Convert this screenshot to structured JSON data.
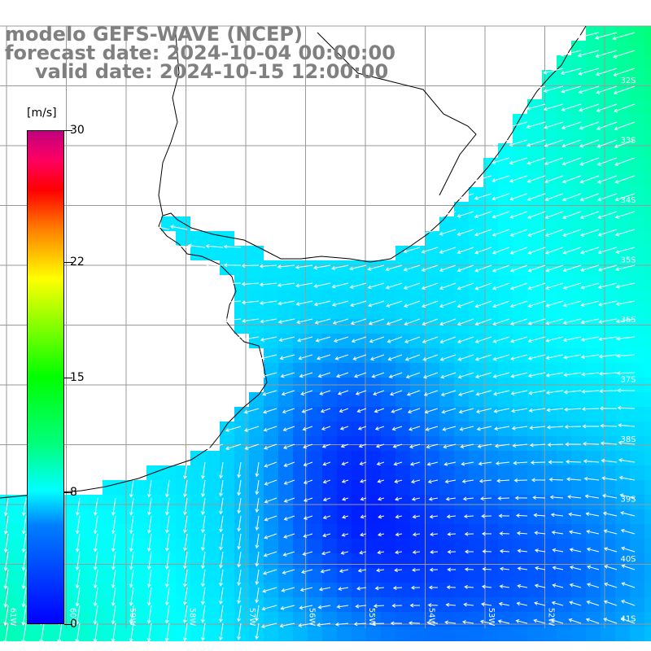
{
  "title": {
    "model": "modelo GEFS-WAVE (NCEP)",
    "forecast": "forecast date: 2024-10-04 00:00:00",
    "valid": "valid date: 2024-10-15 12:00:00"
  },
  "colorbar": {
    "unit": "[m/s]",
    "ticks": [
      "30",
      "22",
      "15",
      "8",
      "0"
    ],
    "tick_values": [
      30,
      22,
      15,
      8,
      0
    ],
    "min": 0,
    "max": 30
  },
  "map": {
    "variable": "wind speed and direction",
    "lat_labels": [
      "32S",
      "33S",
      "34S",
      "35S",
      "36S",
      "37S",
      "38S",
      "39S",
      "40S",
      "41S"
    ],
    "lon_labels": [
      "61W",
      "60W",
      "59W",
      "58W",
      "57W",
      "56W",
      "55W",
      "54W",
      "53W",
      "52W"
    ],
    "land_color": "#ffffff",
    "grid_color": "#999999",
    "arrow_color": "#ffffff"
  }
}
